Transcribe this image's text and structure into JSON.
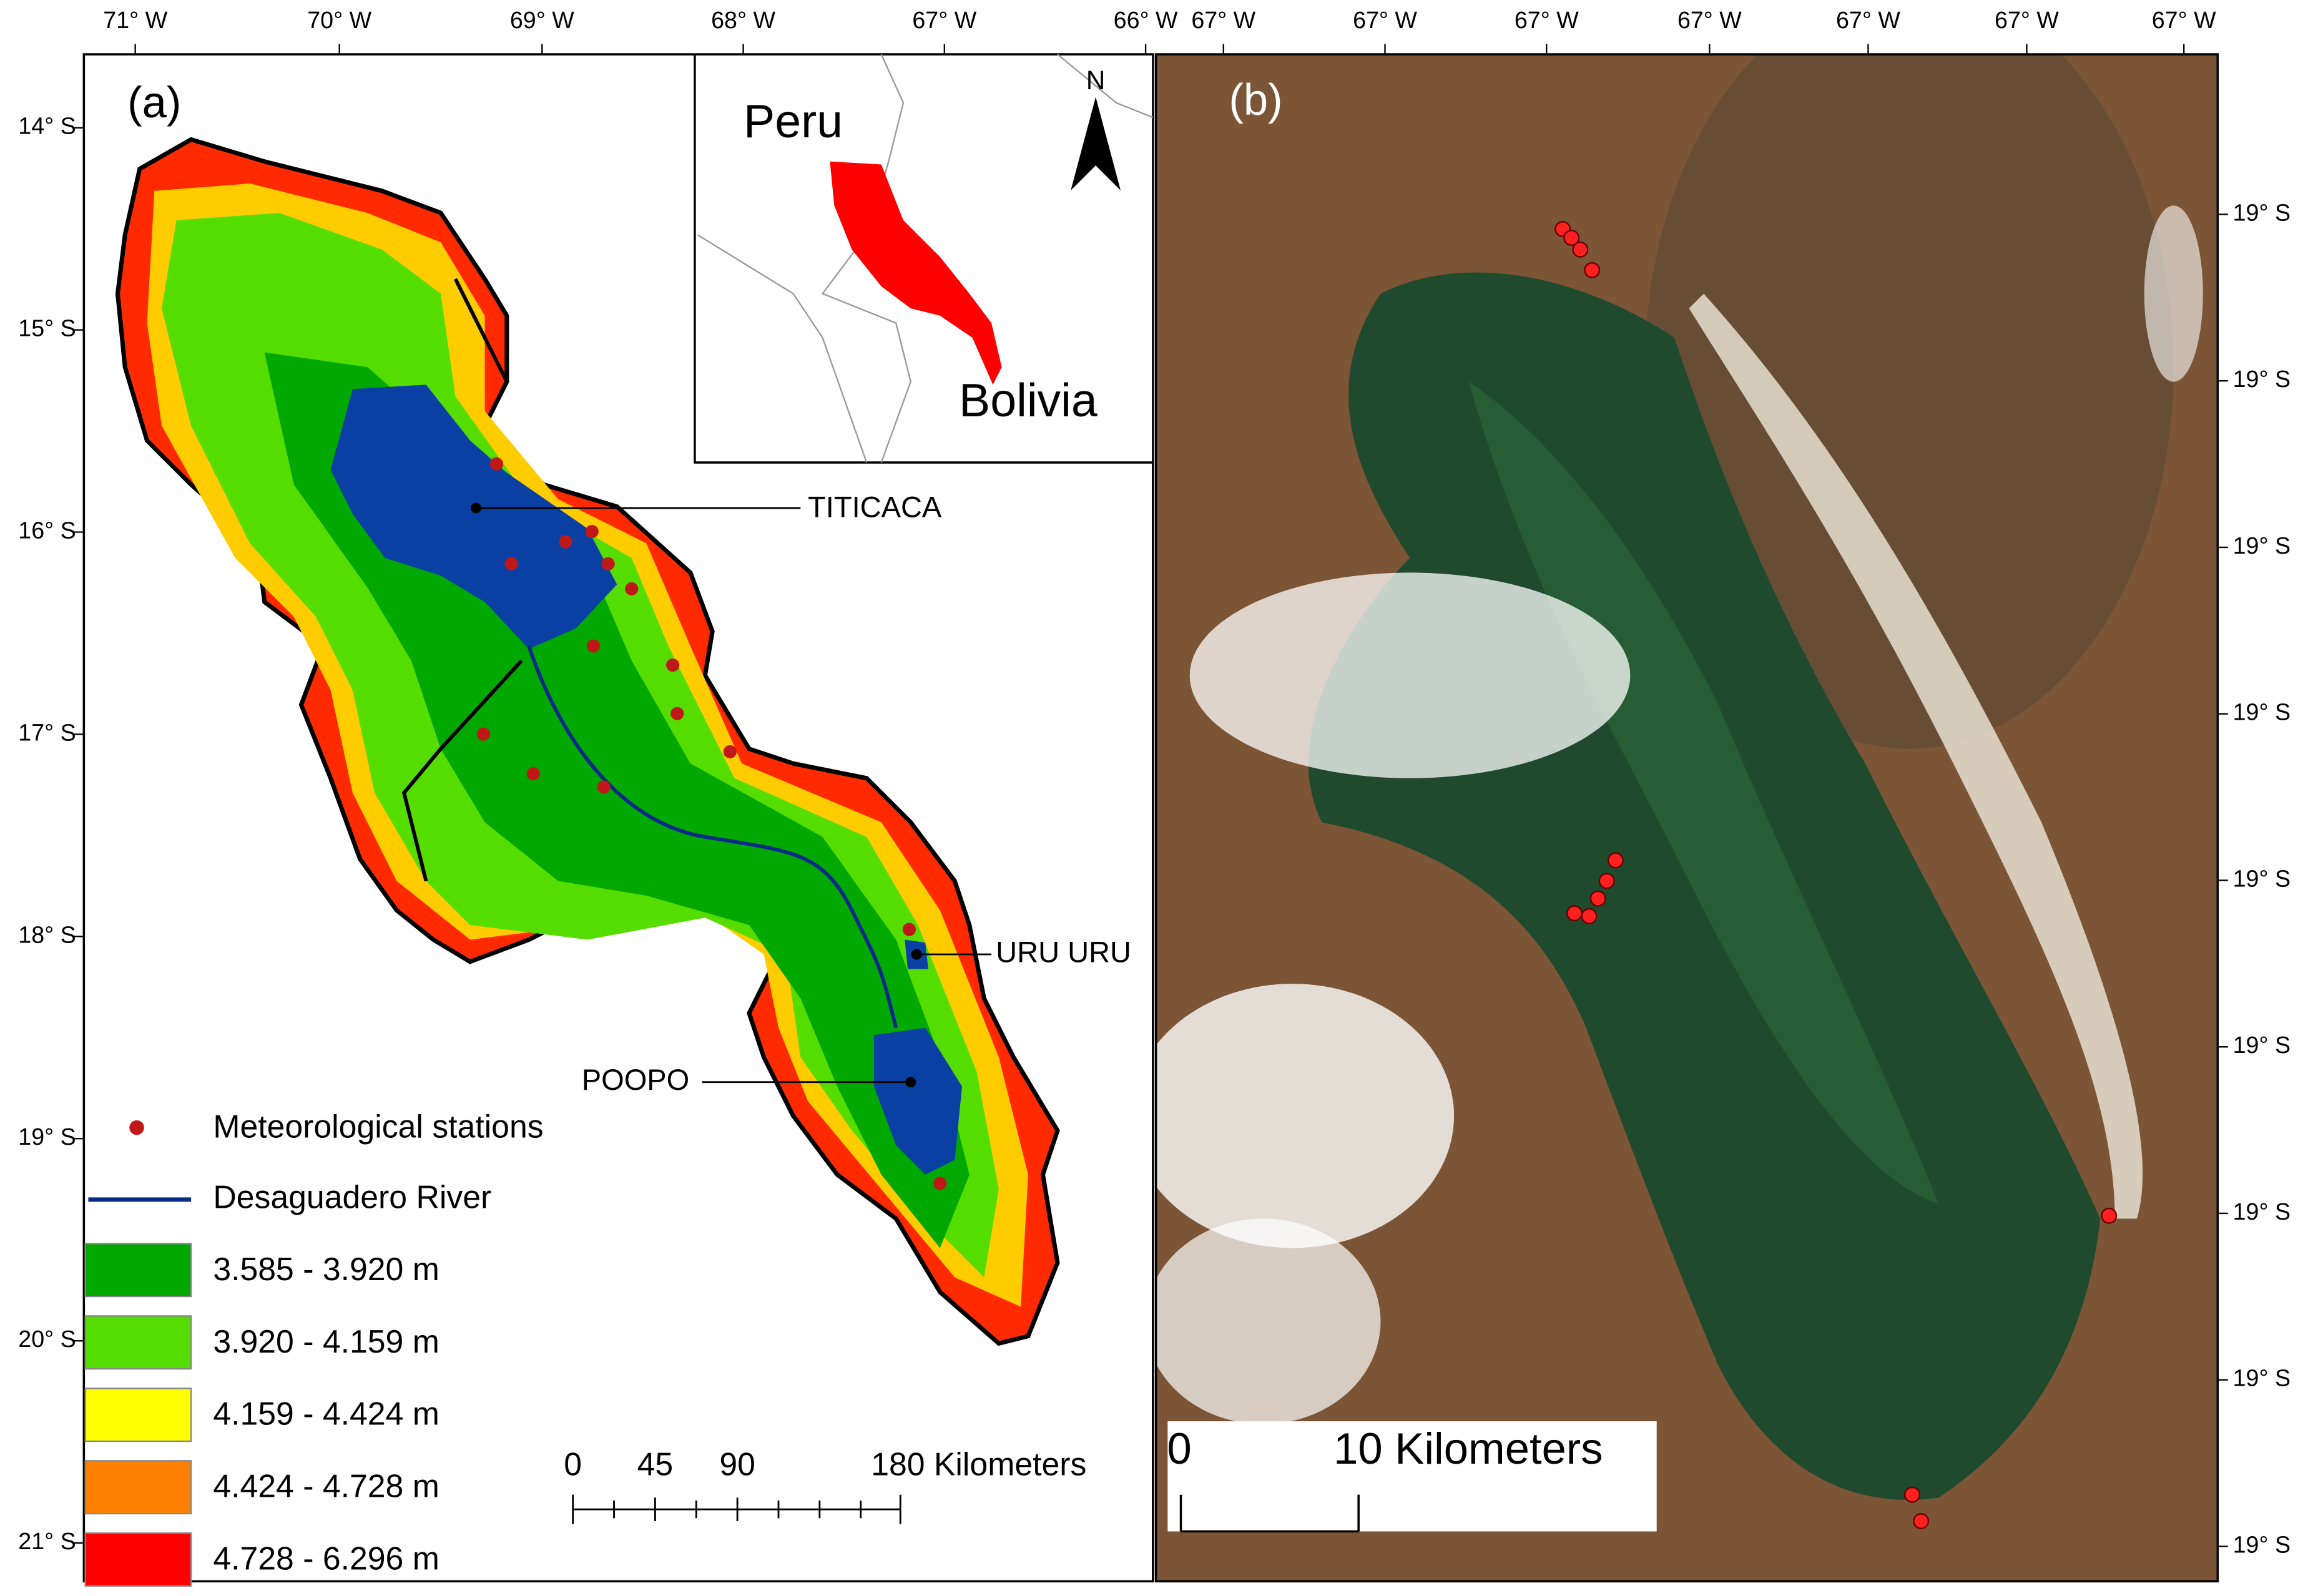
{
  "panel_a": {
    "label": "(a)",
    "lon_labels": [
      "71° W",
      "70° W",
      "69° W",
      "68° W",
      "67° W",
      "66° W"
    ],
    "lat_labels": [
      "14° S",
      "15° S",
      "16° S",
      "17° S",
      "18° S",
      "19° S",
      "20° S",
      "21° S"
    ],
    "inset": {
      "north": "N",
      "countries": [
        "Peru",
        "Bolivia"
      ]
    },
    "lakes": [
      "TITICACA",
      "URU URU",
      "POOPO"
    ],
    "legend": {
      "stations": "Meteorological stations",
      "river": "Desaguadero River",
      "elevation_classes": [
        {
          "label": "3.585 - 3.920 m",
          "color": "#00a800"
        },
        {
          "label": "3.920 - 4.159 m",
          "color": "#55dd00"
        },
        {
          "label": "4.159 - 4.424 m",
          "color": "#ffff00"
        },
        {
          "label": "4.424 - 4.728 m",
          "color": "#ff8000"
        },
        {
          "label": "4.728 - 6.296 m",
          "color": "#ff0000"
        }
      ]
    },
    "scale_bar": [
      "0",
      "45",
      "90",
      "180 Kilometers"
    ]
  },
  "panel_b": {
    "label": "(b)",
    "lon_labels": [
      "67° W",
      "67° W",
      "67° W",
      "67° W",
      "67° W",
      "67° W",
      "67° W"
    ],
    "lat_labels": [
      "19° S",
      "19° S",
      "19° S",
      "19° S",
      "19° S",
      "19° S",
      "19° S",
      "19° S",
      "19° S"
    ],
    "scale_bar": [
      "0",
      "10 Kilometers"
    ]
  }
}
